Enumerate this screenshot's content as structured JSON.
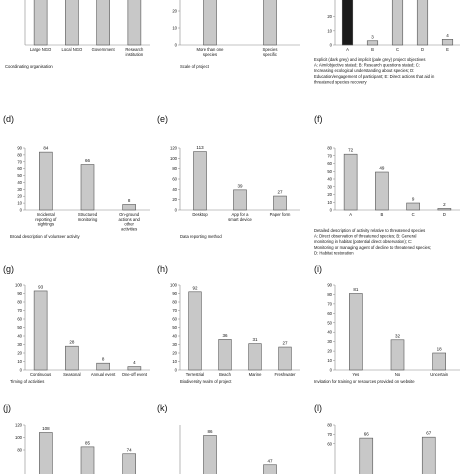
{
  "colors": {
    "bar_fill": "#c8c8c8",
    "bar_dark": "#1a1a1a",
    "bar_edge": "#555555",
    "axis": "#888888"
  },
  "chart_data": [
    {
      "id": "a",
      "label": "",
      "type": "bar",
      "categories": [
        "Large NGO",
        "Local NGO",
        "Government",
        "Research institution"
      ],
      "values": [
        null,
        null,
        null,
        16
      ],
      "ylim": [
        0,
        20
      ],
      "yticks": [],
      "bar_colors": [],
      "caption": [
        "Coordinating organisation"
      ]
    },
    {
      "id": "b",
      "label": "",
      "type": "bar",
      "categories": [
        "More than one species",
        "Species specific"
      ],
      "values": [
        null,
        40
      ],
      "ylim": [
        0,
        50
      ],
      "yticks": [
        0,
        10,
        20,
        30
      ],
      "bar_colors": [],
      "caption": [
        "Scale of project"
      ]
    },
    {
      "id": "c",
      "label": "",
      "type": "bar",
      "categories": [
        "A",
        "B",
        "C",
        "D",
        "E"
      ],
      "values": [
        null,
        3,
        null,
        38,
        4
      ],
      "ylim": [
        0,
        60
      ],
      "yticks": [
        0,
        10,
        20
      ],
      "bar_colors": [
        "dark",
        "light",
        "light",
        "light",
        "light"
      ],
      "caption": [
        "Explicit (dark grey) and implicit (pale grey) project objectives",
        "A: Aim/objective stated; B: Research questions stated; C:",
        "Increasing ecological understanding about species; D:",
        "Education/engagement of participant; E: Direct actions that aid in",
        "threatened species recovery"
      ]
    },
    {
      "id": "d",
      "label": "(d)",
      "type": "bar",
      "categories": [
        "Incidental reporting of sightings",
        "Structured monitoring",
        "On-ground actions and other activities"
      ],
      "values": [
        84,
        66,
        8
      ],
      "ylim": [
        0,
        90
      ],
      "yticks": [
        0,
        10,
        20,
        30,
        40,
        50,
        60,
        70,
        80,
        90
      ],
      "bar_colors": [],
      "caption": [
        "Broad description of volunteer activity"
      ]
    },
    {
      "id": "e",
      "label": "(e)",
      "type": "bar",
      "categories": [
        "Desktop",
        "App for a smart device",
        "Paper form"
      ],
      "values": [
        113,
        39,
        27
      ],
      "ylim": [
        0,
        120
      ],
      "yticks": [
        0,
        20,
        40,
        60,
        80,
        100,
        120
      ],
      "bar_colors": [],
      "caption": [
        "Data reporting method"
      ]
    },
    {
      "id": "f",
      "label": "(f)",
      "type": "bar",
      "categories": [
        "A",
        "B",
        "C",
        "D"
      ],
      "values": [
        72,
        49,
        9,
        2
      ],
      "ylim": [
        0,
        80
      ],
      "yticks": [
        0,
        10,
        20,
        30,
        40,
        50,
        60,
        70,
        80
      ],
      "bar_colors": [],
      "caption": [
        "Detailed description of activity relative to threatened species",
        "A: Direct observation of threatened species; B: General",
        "monitoring in habitat (potential direct observation); C:",
        "Monitoring or managing agent of decline to threatened species;",
        "D: Habitat restoration"
      ]
    },
    {
      "id": "g",
      "label": "(g)",
      "type": "bar",
      "categories": [
        "Continuous",
        "Seasonal",
        "Annual event",
        "One-off event"
      ],
      "values": [
        93,
        28,
        8,
        4
      ],
      "ylim": [
        0,
        100
      ],
      "yticks": [
        0,
        10,
        20,
        30,
        40,
        50,
        60,
        70,
        80,
        90,
        100
      ],
      "bar_colors": [],
      "caption": [
        "Timing of activities"
      ]
    },
    {
      "id": "h",
      "label": "(h)",
      "type": "bar",
      "categories": [
        "Terrestrial",
        "Beach",
        "Marine",
        "Freshwater"
      ],
      "values": [
        92,
        36,
        31,
        27
      ],
      "ylim": [
        0,
        100
      ],
      "yticks": [
        0,
        10,
        20,
        30,
        40,
        50,
        60,
        70,
        80,
        90,
        100
      ],
      "bar_colors": [],
      "caption": [
        "Biodiversity realm of project"
      ]
    },
    {
      "id": "i",
      "label": "(i)",
      "type": "bar",
      "categories": [
        "Yes",
        "No",
        "Uncertain"
      ],
      "values": [
        81,
        32,
        18
      ],
      "ylim": [
        0,
        90
      ],
      "yticks": [
        0,
        10,
        20,
        30,
        40,
        50,
        60,
        70,
        80,
        90
      ],
      "bar_colors": [],
      "caption": [
        "Invitation for training or resources provided on website"
      ]
    },
    {
      "id": "j",
      "label": "(j)",
      "type": "bar",
      "categories": [
        "",
        "",
        ""
      ],
      "values": [
        108,
        85,
        74
      ],
      "ylim": [
        0,
        120
      ],
      "yticks": [
        80,
        100,
        120
      ],
      "bar_colors": [],
      "caption": []
    },
    {
      "id": "k",
      "label": "(k)",
      "type": "bar",
      "categories": [
        "",
        ""
      ],
      "values": [
        86,
        47
      ],
      "ylim": [
        0,
        100
      ],
      "yticks": [],
      "bar_colors": [],
      "caption": []
    },
    {
      "id": "l",
      "label": "(l)",
      "type": "bar",
      "categories": [
        "",
        ""
      ],
      "values": [
        66,
        67
      ],
      "ylim": [
        0,
        80
      ],
      "yticks": [
        60,
        70,
        80
      ],
      "bar_colors": [],
      "caption": []
    }
  ]
}
